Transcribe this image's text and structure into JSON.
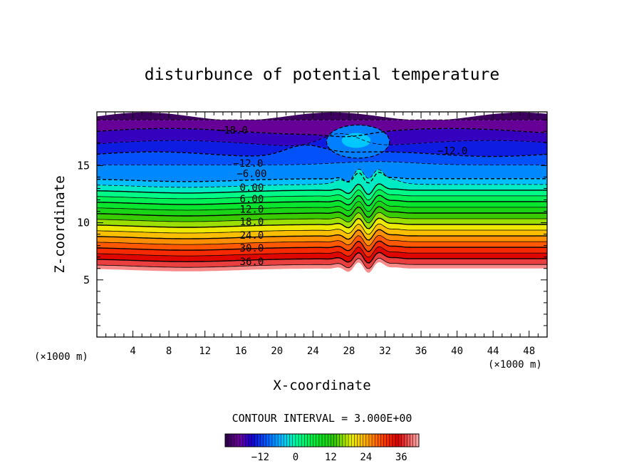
{
  "chart_data": {
    "type": "contour",
    "title": "disturbunce of potential temperature",
    "xlabel": "X-coordinate",
    "ylabel": "Z-coordinate",
    "x_unit_left": "(×1000 m)",
    "x_unit_right": "(×1000 m)",
    "xlim": [
      0,
      50
    ],
    "ylim": [
      0,
      19.7
    ],
    "x_ticks": [
      "4",
      "8",
      "12",
      "16",
      "20",
      "24",
      "28",
      "32",
      "36",
      "40",
      "44",
      "48"
    ],
    "y_ticks": [
      "5",
      "10",
      "15"
    ],
    "contour_interval_text": "CONTOUR INTERVAL = 3.000E+00",
    "colorbar_ticks": [
      "−12",
      "0",
      "12",
      "24",
      "36"
    ],
    "colorbar_range": [
      -24,
      42
    ],
    "contour_labels": [
      {
        "text": "−18.0",
        "x": 15.1,
        "y": 18.1
      },
      {
        "text": "−12.0",
        "x": 39.5,
        "y": 16.3
      },
      {
        "text": "−12.0",
        "x": 16.8,
        "y": 15.2
      },
      {
        "text": "−6.00",
        "x": 17.2,
        "y": 14.3
      },
      {
        "text": "0.00",
        "x": 17.2,
        "y": 13.1
      },
      {
        "text": "6.00",
        "x": 17.2,
        "y": 12.1
      },
      {
        "text": "12.0",
        "x": 17.2,
        "y": 11.2
      },
      {
        "text": "18.0",
        "x": 17.2,
        "y": 10.1
      },
      {
        "text": "24.0",
        "x": 17.2,
        "y": 8.9
      },
      {
        "text": "30.0",
        "x": 17.2,
        "y": 7.8
      },
      {
        "text": "36.0",
        "x": 17.2,
        "y": 6.6
      }
    ],
    "contour_levels": [
      -21,
      -18,
      -15,
      -12,
      -9,
      -6,
      -3,
      0,
      3,
      6,
      9,
      12,
      15,
      18,
      21,
      24,
      27,
      30,
      33,
      36,
      39
    ],
    "grid": false,
    "legend": "colorbar-bottom"
  }
}
